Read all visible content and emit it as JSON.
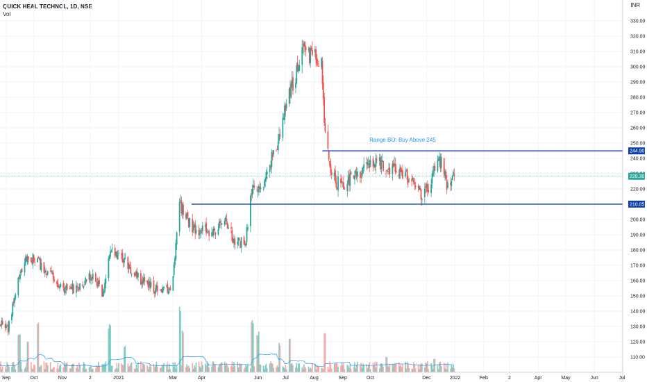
{
  "header": {
    "symbol_line": "QUICK HEAL TECHNOL, 1D, NSE",
    "volume_label": "Vol",
    "corner_label": "INR"
  },
  "colors": {
    "up": "#26a69a",
    "down": "#ef5350",
    "vol_up": "#80cbc4",
    "vol_down": "#f7a9a7",
    "level_line": "#0d3fa6",
    "price_line": "#26a69a",
    "vol_ma": "#2196f3",
    "grid": "#f0f3fa",
    "annotation": "#2196f3"
  },
  "chart_data": {
    "type": "candlestick",
    "y_axis": {
      "min": 100,
      "max": 330,
      "tick_values": [
        110,
        120,
        130,
        140,
        150,
        160,
        170,
        180,
        190,
        200,
        210,
        220,
        230,
        240,
        250,
        260,
        270,
        280,
        290,
        300,
        310,
        320,
        330
      ],
      "tick_labels": [
        "110.00",
        "120.00",
        "130.00",
        "140.00",
        "150.00",
        "160.00",
        "170.00",
        "180.00",
        "190.00",
        "200.00",
        "210.00",
        "220.00",
        "230.00",
        "240.00",
        "250.00",
        "260.00",
        "270.00",
        "280.00",
        "290.00",
        "300.00",
        "310.00",
        "320.00",
        "330.00"
      ]
    },
    "x_axis": {
      "start": "2020-09-01",
      "end": "2022-07-12",
      "ticks": [
        {
          "date": "2020-09-01",
          "label": "Sep"
        },
        {
          "date": "2020-10-01",
          "label": "Oct"
        },
        {
          "date": "2020-11-01",
          "label": "Nov"
        },
        {
          "date": "2020-12-01",
          "label": "2"
        },
        {
          "date": "2021-01-01",
          "label": "2021"
        },
        {
          "date": "2021-03-01",
          "label": "Mar"
        },
        {
          "date": "2021-04-01",
          "label": "Apr"
        },
        {
          "date": "2021-06-01",
          "label": "Jun"
        },
        {
          "date": "2021-07-01",
          "label": "Jul"
        },
        {
          "date": "2021-08-01",
          "label": "Aug"
        },
        {
          "date": "2021-09-01",
          "label": "Sep"
        },
        {
          "date": "2021-10-01",
          "label": "Oct"
        },
        {
          "date": "2021-12-01",
          "label": "Dec"
        },
        {
          "date": "2022-01-01",
          "label": "2022"
        },
        {
          "date": "2022-02-01",
          "label": "Feb"
        },
        {
          "date": "2022-03-01",
          "label": "2"
        },
        {
          "date": "2022-04-01",
          "label": "Apr"
        },
        {
          "date": "2022-05-01",
          "label": "May"
        },
        {
          "date": "2022-06-01",
          "label": "Jun"
        },
        {
          "date": "2022-07-01",
          "label": "Jul"
        }
      ]
    },
    "price_trajectory": [
      {
        "date": "2020-08-20",
        "close": 135
      },
      {
        "date": "2020-09-03",
        "close": 128
      },
      {
        "date": "2020-09-14",
        "close": 160
      },
      {
        "date": "2020-09-24",
        "close": 176
      },
      {
        "date": "2020-10-06",
        "close": 172
      },
      {
        "date": "2020-10-16",
        "close": 165
      },
      {
        "date": "2020-10-30",
        "close": 155
      },
      {
        "date": "2020-11-15",
        "close": 155
      },
      {
        "date": "2020-12-05",
        "close": 165
      },
      {
        "date": "2020-12-15",
        "close": 150
      },
      {
        "date": "2020-12-22",
        "close": 180
      },
      {
        "date": "2021-01-05",
        "close": 175
      },
      {
        "date": "2021-01-25",
        "close": 160
      },
      {
        "date": "2021-02-15",
        "close": 152
      },
      {
        "date": "2021-02-28",
        "close": 155
      },
      {
        "date": "2021-03-08",
        "close": 210
      },
      {
        "date": "2021-03-22",
        "close": 195
      },
      {
        "date": "2021-04-10",
        "close": 192
      },
      {
        "date": "2021-04-28",
        "close": 198
      },
      {
        "date": "2021-05-06",
        "close": 185
      },
      {
        "date": "2021-05-19",
        "close": 185
      },
      {
        "date": "2021-05-25",
        "close": 220
      },
      {
        "date": "2021-06-08",
        "close": 225
      },
      {
        "date": "2021-06-22",
        "close": 250
      },
      {
        "date": "2021-07-06",
        "close": 285
      },
      {
        "date": "2021-07-20",
        "close": 310
      },
      {
        "date": "2021-08-04",
        "close": 305
      },
      {
        "date": "2021-08-09",
        "close": 300
      },
      {
        "date": "2021-08-13",
        "close": 255
      },
      {
        "date": "2021-08-20",
        "close": 228
      },
      {
        "date": "2021-09-01",
        "close": 222
      },
      {
        "date": "2021-09-20",
        "close": 232
      },
      {
        "date": "2021-10-10",
        "close": 238
      },
      {
        "date": "2021-10-25",
        "close": 233
      },
      {
        "date": "2021-11-10",
        "close": 230
      },
      {
        "date": "2021-11-28",
        "close": 215
      },
      {
        "date": "2021-12-10",
        "close": 232
      },
      {
        "date": "2021-12-17",
        "close": 238
      },
      {
        "date": "2021-12-24",
        "close": 222
      },
      {
        "date": "2021-12-31",
        "close": 228.3
      }
    ],
    "volume_spikes": [
      {
        "date": "2020-09-15",
        "value": 0.55
      },
      {
        "date": "2020-09-25",
        "value": 0.45
      },
      {
        "date": "2020-10-05",
        "value": 0.75
      },
      {
        "date": "2020-12-22",
        "value": 0.7
      },
      {
        "date": "2021-01-08",
        "value": 0.4
      },
      {
        "date": "2021-03-08",
        "value": 0.95
      },
      {
        "date": "2021-03-12",
        "value": 0.65
      },
      {
        "date": "2021-05-26",
        "value": 0.8
      },
      {
        "date": "2021-06-01",
        "value": 0.6
      },
      {
        "date": "2021-06-25",
        "value": 0.45
      },
      {
        "date": "2021-07-05",
        "value": 0.55
      },
      {
        "date": "2021-08-13",
        "value": 0.6
      },
      {
        "date": "2021-10-18",
        "value": 0.25
      },
      {
        "date": "2021-12-10",
        "value": 0.2
      }
    ],
    "horizontal_levels": [
      {
        "value": 244.9,
        "label": "244.90",
        "from_date": "2021-08-10"
      },
      {
        "value": 210.05,
        "label": "210.05",
        "from_date": "2021-03-21"
      }
    ],
    "last_price": {
      "value": 228.3,
      "label": "228.30"
    },
    "annotation": {
      "text": "Range BO: Buy Above 245",
      "date": "2021-11-05",
      "value": 251
    }
  }
}
